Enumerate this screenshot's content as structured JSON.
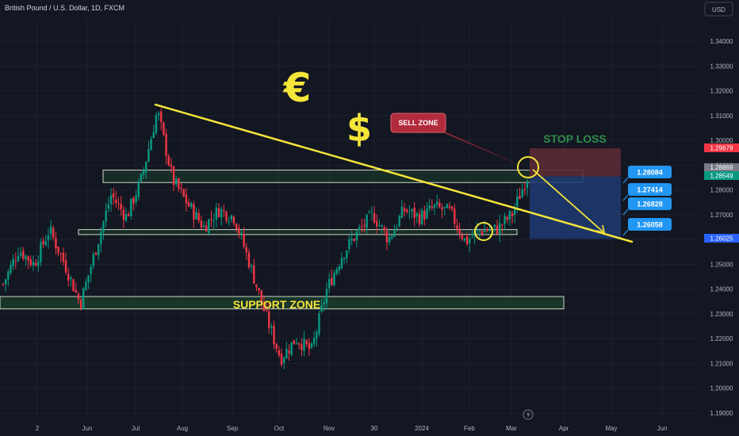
{
  "header": {
    "title": "British Pound / U.S. Dollar, 1D, FXCM"
  },
  "toolbar": {
    "currency_label": "USD"
  },
  "price_axis": {
    "ticks": [
      "1.34000",
      "1.33000",
      "1.32000",
      "1.31000",
      "1.30000",
      "1.29000",
      "1.28000",
      "1.27000",
      "1.26000",
      "1.25000",
      "1.24000",
      "1.23000",
      "1.22000",
      "1.21000",
      "1.20000",
      "1.19000"
    ],
    "tag_stop": "1.29679",
    "tag_gray": "1.28869",
    "tag_last": "1.28549",
    "tag_target": "1.26025"
  },
  "time_axis": {
    "ticks": [
      "2",
      "Jun",
      "Jul",
      "Aug",
      "Sep",
      "Oct",
      "Nov",
      "30",
      "2024",
      "Feb",
      "Mar",
      "Apr",
      "May",
      "Jun"
    ]
  },
  "annotations": {
    "support_zone": "SUPPORT ZONE",
    "sell_zone": "SELL ZONE",
    "stop_loss": "STOP LOSS",
    "euro_symbol": "€",
    "dollar_symbol": "$",
    "targets": [
      "1.28084",
      "1.27414",
      "1.26828",
      "1.26058"
    ]
  },
  "colors": {
    "background": "#131722",
    "up_candle": "#089981",
    "down_candle": "#f23645",
    "trendline": "#f5e53a",
    "zone_fill": "#1b3b2c",
    "zone_border": "#cfd8c4",
    "target_box": "#1f3a72",
    "stop_box": "#5b2a34",
    "tag_blue": "#2962ff",
    "tag_red": "#f23645",
    "tag_green": "#089981",
    "label_blue": "#2196f3"
  },
  "chart_data": {
    "type": "candlestick",
    "title": "British Pound / U.S. Dollar, 1D, FXCM",
    "y_range": [
      1.19,
      1.34
    ],
    "x_ticks": [
      "2",
      "Jun",
      "Jul",
      "Aug",
      "Sep",
      "Oct",
      "Nov",
      "30",
      "2024",
      "Feb",
      "Mar",
      "Apr",
      "May",
      "Jun"
    ],
    "price_path": [
      {
        "x": "Apr 2023",
        "y": 1.242
      },
      {
        "x": "Apr 2023",
        "y": 1.256
      },
      {
        "x": "Apr 2023",
        "y": 1.25
      },
      {
        "x": "May 2023",
        "y": 1.264
      },
      {
        "x": "May 2023",
        "y": 1.25
      },
      {
        "x": "May 2023",
        "y": 1.234
      },
      {
        "x": "Jun 2023",
        "y": 1.256
      },
      {
        "x": "Jun 2023",
        "y": 1.278
      },
      {
        "x": "Jun 2023",
        "y": 1.269
      },
      {
        "x": "Jul 2023",
        "y": 1.285
      },
      {
        "x": "Jul 2023",
        "y": 1.312
      },
      {
        "x": "Jul 2023",
        "y": 1.284
      },
      {
        "x": "Aug 2023",
        "y": 1.274
      },
      {
        "x": "Aug 2023",
        "y": 1.265
      },
      {
        "x": "Aug 2023",
        "y": 1.272
      },
      {
        "x": "Sep 2023",
        "y": 1.269
      },
      {
        "x": "Sep 2023",
        "y": 1.25
      },
      {
        "x": "Sep 2023",
        "y": 1.23
      },
      {
        "x": "Oct 2023",
        "y": 1.212
      },
      {
        "x": "Oct 2023",
        "y": 1.22
      },
      {
        "x": "Oct 2023",
        "y": 1.215
      },
      {
        "x": "Nov 2023",
        "y": 1.24
      },
      {
        "x": "Nov 2023",
        "y": 1.254
      },
      {
        "x": "Nov 2023",
        "y": 1.263
      },
      {
        "x": "Dec 2023",
        "y": 1.27
      },
      {
        "x": "Dec 2023",
        "y": 1.26
      },
      {
        "x": "Dec 2023",
        "y": 1.272
      },
      {
        "x": "2024",
        "y": 1.269
      },
      {
        "x": "Jan 2024",
        "y": 1.273
      },
      {
        "x": "Jan 2024",
        "y": 1.271
      },
      {
        "x": "Feb 2024",
        "y": 1.259
      },
      {
        "x": "Feb 2024",
        "y": 1.264
      },
      {
        "x": "Feb 2024",
        "y": 1.264
      },
      {
        "x": "Mar 2024",
        "y": 1.27
      },
      {
        "x": "Mar 2024",
        "y": 1.2855
      }
    ],
    "trendline": {
      "start": {
        "x": "Jul 2023",
        "y": 1.3145
      },
      "end": {
        "x": "Apr 2024",
        "y": 1.259
      }
    },
    "zones": [
      {
        "label": "SUPPORT ZONE",
        "y_low": 1.232,
        "y_high": 1.237
      },
      {
        "label": "",
        "y_low": 1.283,
        "y_high": 1.288
      },
      {
        "label": "",
        "y_low": 1.262,
        "y_high": 1.264
      }
    ],
    "position": {
      "entry": 1.28549,
      "stop": 1.29679,
      "target": 1.26025
    }
  }
}
